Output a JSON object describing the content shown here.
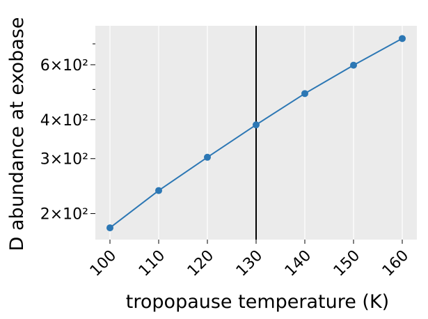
{
  "chart_data": {
    "type": "line",
    "xlabel": "tropopause temperature (K)",
    "ylabel": "D abundance at exobase",
    "x": [
      100,
      110,
      120,
      130,
      140,
      150,
      160
    ],
    "series": [
      {
        "values": [
          180,
          237,
          303,
          385,
          485,
          598,
          728
        ],
        "color": "#2c77b4",
        "marker": "circle"
      }
    ],
    "xlim": [
      97,
      163
    ],
    "xticks": [
      100,
      110,
      120,
      130,
      140,
      150,
      160
    ],
    "xtick_labels": [
      "100",
      "110",
      "120",
      "130",
      "140",
      "150",
      "160"
    ],
    "xtick_rotation": "45 degrees",
    "yscale": "log",
    "ylim": [
      165,
      800
    ],
    "yticks": [
      200,
      300,
      400,
      600
    ],
    "ytick_labels": [
      "2×10²",
      "3×10²",
      "4×10²",
      "6×10²"
    ],
    "yminor_ticks": [
      500,
      700
    ],
    "vline": {
      "x": 130,
      "color": "#000000"
    },
    "grid": "vertical",
    "background": "#ebebeb"
  }
}
